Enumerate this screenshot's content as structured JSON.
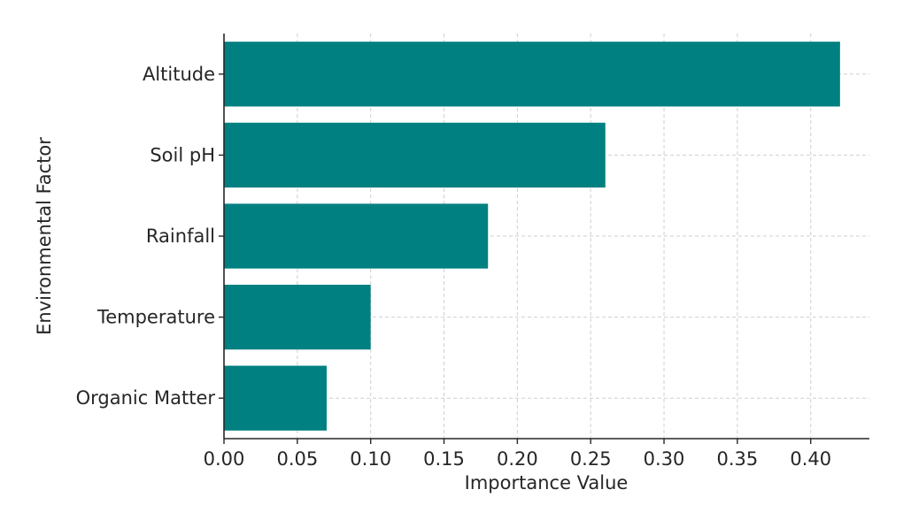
{
  "chart_data": {
    "type": "bar",
    "orientation": "horizontal",
    "categories": [
      "Altitude",
      "Soil pH",
      "Rainfall",
      "Temperature",
      "Organic Matter"
    ],
    "values": [
      0.42,
      0.26,
      0.18,
      0.1,
      0.07
    ],
    "xlabel": "Importance Value",
    "ylabel": "Environmental Factor",
    "xlim": [
      0,
      0.44
    ],
    "xticks": [
      "0.00",
      "0.05",
      "0.10",
      "0.15",
      "0.20",
      "0.25",
      "0.30",
      "0.35",
      "0.40"
    ],
    "grid": true,
    "bar_color": "#008080"
  }
}
